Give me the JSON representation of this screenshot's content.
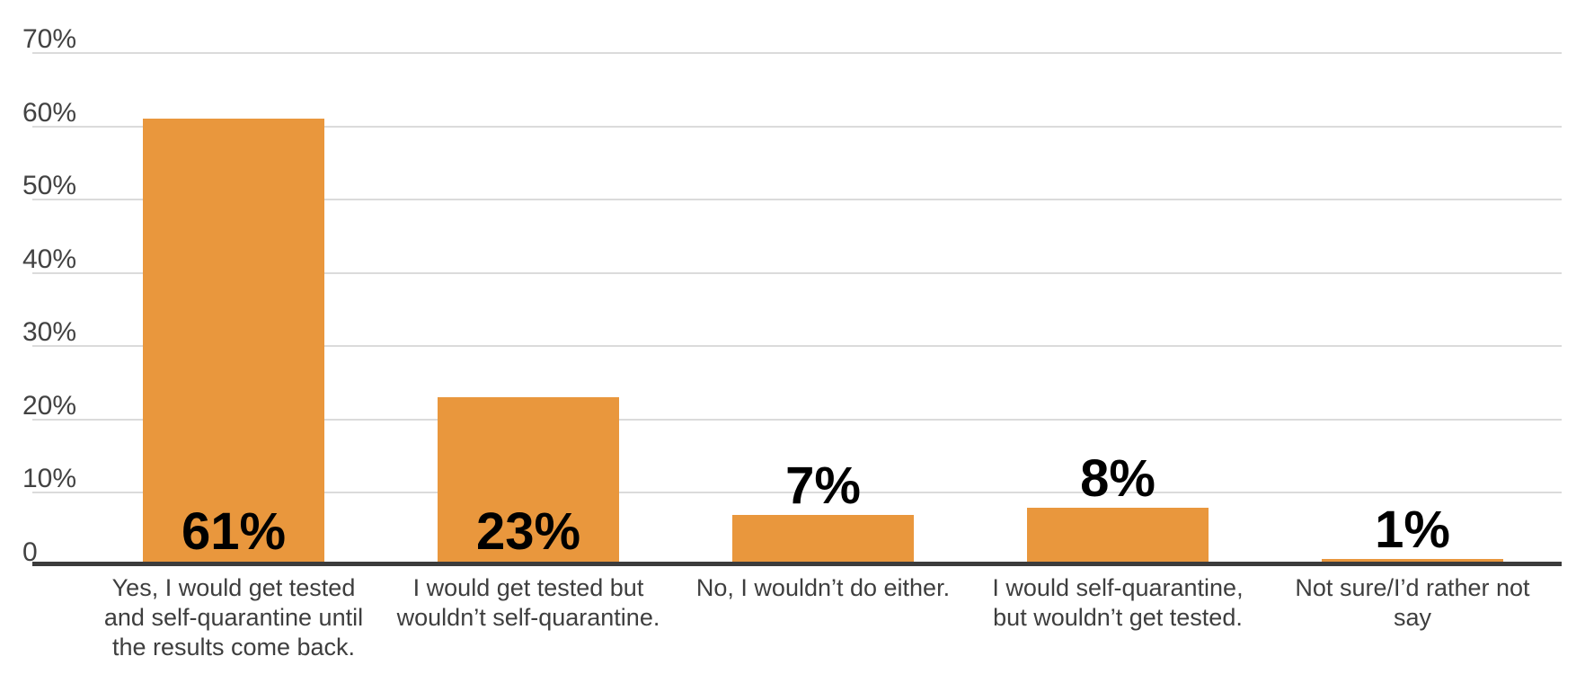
{
  "chart_data": {
    "type": "bar",
    "title": "",
    "xlabel": "",
    "ylabel": "",
    "ylim": [
      0,
      70
    ],
    "grid": "horizontal",
    "legend": "none",
    "categories": [
      "Yes, I would get tested and self-quarantine until the results come back.",
      "I would get tested but wouldn’t self-quarantine.",
      "No, I wouldn’t do either.",
      "I would self-quarantine, but wouldn’t get tested.",
      "Not sure/I’d rather not say"
    ],
    "categories_wrapped": [
      [
        "Yes, I would get tested",
        "and self-quarantine until",
        "the results come back."
      ],
      [
        "I would get tested but",
        "wouldn’t self-quarantine."
      ],
      [
        "No, I wouldn’t do either."
      ],
      [
        "I would self-quarantine,",
        "but wouldn’t get tested."
      ],
      [
        "Not sure/I’d rather not",
        "say"
      ]
    ],
    "values": [
      61,
      23,
      7,
      8,
      1
    ],
    "value_labels": [
      "61%",
      "23%",
      "7%",
      "8%",
      "1%"
    ],
    "yticks": [
      {
        "label": "70%",
        "value": 70
      },
      {
        "label": "60%",
        "value": 60
      },
      {
        "label": "50%",
        "value": 50
      },
      {
        "label": "40%",
        "value": 40
      },
      {
        "label": "30%",
        "value": 30
      },
      {
        "label": "20%",
        "value": 20
      },
      {
        "label": "10%",
        "value": 10
      },
      {
        "label": "0",
        "value": 0
      }
    ],
    "colors": {
      "bar": "#E9973D",
      "gridline": "#DBDBDB",
      "axis_line": "#3C3C3C",
      "tick_label": "#424242",
      "category_label": "#3E3E3E",
      "value_label": "#000000"
    }
  }
}
